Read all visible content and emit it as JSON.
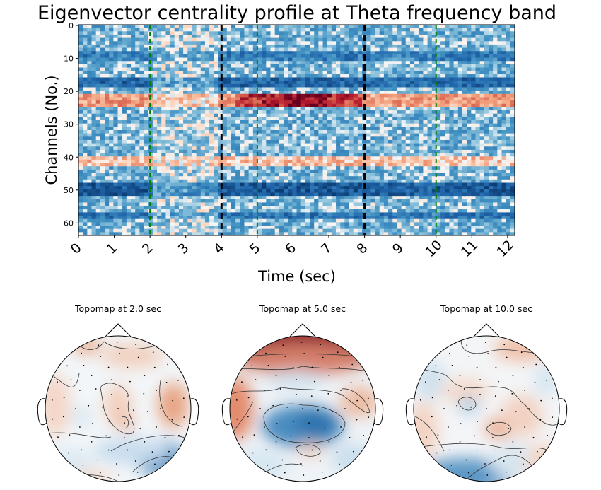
{
  "chart_data": [
    {
      "type": "heatmap",
      "title": "Eigenvector centrality profile at Theta frequency band",
      "xlabel": "Time (sec)",
      "ylabel": "Channels (No.)",
      "xlim": [
        0,
        12.2
      ],
      "ylim": [
        64,
        0
      ],
      "x_ticks": [
        0,
        1,
        2,
        3,
        4,
        5,
        6,
        7,
        8,
        9,
        10,
        11,
        12
      ],
      "y_ticks": [
        0,
        10,
        20,
        30,
        40,
        50,
        60
      ],
      "colormap": "RdBu_r",
      "n_channels": 64,
      "n_time_bins": 100,
      "event_lines": [
        {
          "x": 4,
          "color": "#000000",
          "style": "dashed"
        },
        {
          "x": 8,
          "color": "#000000",
          "style": "dashed"
        }
      ],
      "marker_lines": [
        {
          "x": 2,
          "color": "#008000",
          "style": "dashed"
        },
        {
          "x": 5,
          "color": "#008000",
          "style": "dashed"
        },
        {
          "x": 10,
          "color": "#008000",
          "style": "dashed"
        }
      ],
      "row_features": [
        {
          "channels": [
            8,
            9,
            10
          ],
          "value": -0.45
        },
        {
          "channels": [
            16,
            17,
            18
          ],
          "value": -0.6
        },
        {
          "channels": [
            21,
            22,
            23,
            24
          ],
          "value": 0.35,
          "peak_window": [
            4.4,
            7.9
          ],
          "peak_value": 0.95
        },
        {
          "channels": [
            40,
            41,
            42
          ],
          "value": 0.2
        },
        {
          "channels": [
            48,
            49,
            50,
            51
          ],
          "value": -0.7
        },
        {
          "channels": [
            57,
            58
          ],
          "value": -0.5
        }
      ]
    },
    {
      "type": "heatmap",
      "title": "Topomap at 2.0 sec",
      "colormap": "RdBu_r"
    },
    {
      "type": "heatmap",
      "title": "Topomap at 5.0 sec",
      "colormap": "RdBu_r"
    },
    {
      "type": "heatmap",
      "title": "Topomap at 10.0 sec",
      "colormap": "RdBu_r"
    }
  ],
  "colors": {
    "red_max": "#67001f",
    "red": "#d6604d",
    "neutral": "#f7f7f7",
    "blue": "#4393c3",
    "blue_max": "#053061",
    "event_line": "#000000",
    "marker_line": "#008000"
  }
}
